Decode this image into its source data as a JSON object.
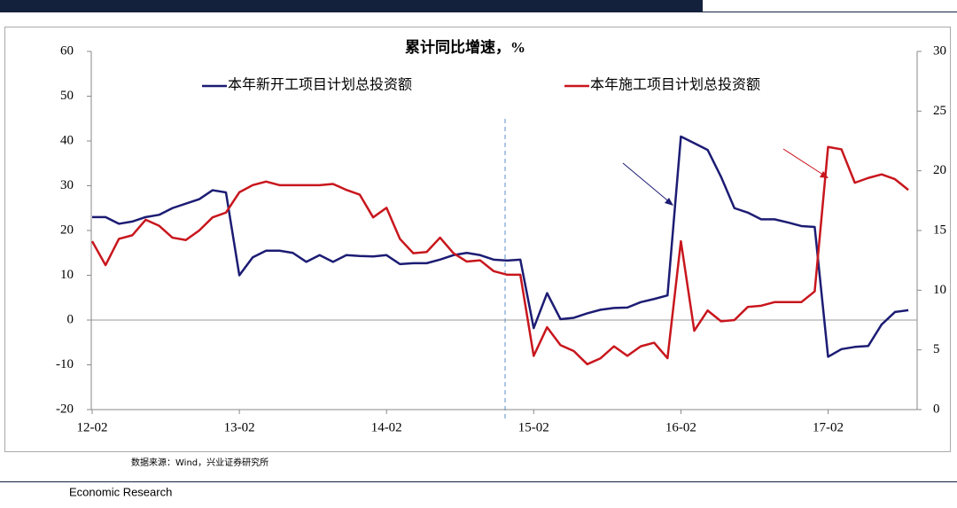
{
  "chart_data": {
    "type": "line",
    "title": "累计同比增速，%",
    "source": "数据来源：Wind，兴业证券研究所",
    "footer": "Economic Research",
    "categories": [
      "12-02",
      null,
      null,
      null,
      null,
      null,
      null,
      null,
      null,
      null,
      null,
      "13-02",
      null,
      null,
      null,
      null,
      null,
      null,
      null,
      null,
      null,
      null,
      "14-02",
      null,
      null,
      null,
      null,
      null,
      null,
      null,
      null,
      null,
      null,
      "15-02",
      null,
      null,
      null,
      null,
      null,
      null,
      null,
      null,
      null,
      null,
      "16-02",
      null,
      null,
      null,
      null,
      null,
      null,
      null,
      null,
      null,
      null,
      "17-02",
      null,
      null,
      null,
      null,
      null,
      null
    ],
    "series": [
      {
        "name": "本年新开工项目计划总投资额",
        "color": "#1c1c74",
        "values": [
          23,
          23,
          21.5,
          22,
          23,
          23.5,
          25,
          26,
          27,
          29,
          28.5,
          10,
          14,
          15.5,
          15.5,
          15,
          13,
          14.5,
          13,
          14.5,
          14.3,
          14.2,
          14.5,
          12.5,
          12.7,
          12.7,
          13.5,
          14.5,
          15,
          14.5,
          13.5,
          13.3,
          13.5,
          -1.8,
          6,
          0.2,
          0.5,
          1.5,
          2.3,
          2.7,
          2.8,
          4,
          4.7,
          5.5,
          41,
          39.5,
          38,
          32,
          25,
          24,
          22.5,
          22.5,
          21.8,
          21,
          20.8,
          -8.2,
          -6.5,
          -6,
          -5.8,
          -1,
          1.8,
          2.2
        ]
      },
      {
        "name": "本年施工项目计划总投资额",
        "color": "#c8161d",
        "axis": "y2",
        "values": [
          14.1,
          12.1,
          14.3,
          14.6,
          15.9,
          15.4,
          14.4,
          14.2,
          15,
          16.1,
          16.5,
          18.2,
          18.8,
          19.1,
          18.8,
          18.8,
          18.8,
          18.8,
          18.9,
          18.4,
          18,
          16.1,
          16.9,
          14.3,
          13.1,
          13.2,
          14.4,
          13.1,
          12.4,
          12.5,
          11.6,
          11.3,
          11.3,
          4.5,
          6.9,
          5.4,
          4.9,
          3.8,
          4.3,
          5.3,
          4.5,
          5.3,
          5.6,
          4.3,
          14.1,
          6.6,
          8.3,
          7.4,
          7.5,
          8.6,
          8.7,
          9,
          9,
          9,
          9.9,
          22,
          21.8,
          19,
          19.4,
          19.7,
          19.3,
          18.4
        ]
      }
    ],
    "ylim": [
      -20,
      60
    ],
    "yticks": [
      -20,
      -10,
      0,
      10,
      20,
      30,
      40,
      50,
      60
    ],
    "y2lim": [
      0,
      30
    ],
    "y2ticks": [
      0,
      5,
      10,
      15,
      20,
      25,
      30
    ]
  }
}
